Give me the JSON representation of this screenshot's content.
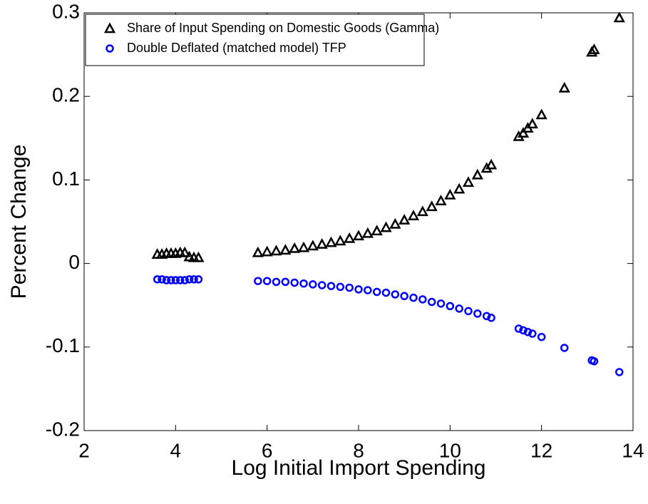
{
  "chart_data": {
    "type": "scatter",
    "xlabel": "Log Initial Import Spending",
    "ylabel": "Percent Change",
    "x": [
      3.6,
      3.7,
      3.8,
      3.9,
      4.0,
      4.1,
      4.2,
      4.3,
      4.4,
      4.5,
      5.8,
      6.0,
      6.2,
      6.4,
      6.6,
      6.8,
      7.0,
      7.2,
      7.4,
      7.6,
      7.8,
      8.0,
      8.2,
      8.4,
      8.6,
      8.8,
      9.0,
      9.2,
      9.4,
      9.6,
      9.8,
      10.0,
      10.2,
      10.4,
      10.6,
      10.8,
      10.9,
      11.5,
      11.6,
      11.7,
      11.8,
      12.0,
      12.5,
      13.1,
      13.15,
      13.7
    ],
    "series": [
      {
        "name": "Share of Input Spending on Domestic Goods (Gamma)",
        "color": "#000000",
        "marker": "triangle",
        "values": [
          0.011,
          0.011,
          0.012,
          0.012,
          0.012,
          0.013,
          0.013,
          0.008,
          0.007,
          0.007,
          0.013,
          0.014,
          0.015,
          0.016,
          0.018,
          0.019,
          0.021,
          0.023,
          0.025,
          0.027,
          0.03,
          0.033,
          0.036,
          0.039,
          0.043,
          0.047,
          0.052,
          0.057,
          0.062,
          0.068,
          0.075,
          0.082,
          0.089,
          0.097,
          0.106,
          0.114,
          0.118,
          0.152,
          0.156,
          0.162,
          0.167,
          0.178,
          0.21,
          0.253,
          0.256,
          0.294
        ]
      },
      {
        "name": "Double Deflated (matched model) TFP",
        "color": "#0000ff",
        "marker": "circle",
        "values": [
          -0.019,
          -0.019,
          -0.02,
          -0.02,
          -0.02,
          -0.02,
          -0.02,
          -0.019,
          -0.019,
          -0.019,
          -0.021,
          -0.021,
          -0.022,
          -0.022,
          -0.023,
          -0.024,
          -0.025,
          -0.026,
          -0.027,
          -0.028,
          -0.029,
          -0.031,
          -0.032,
          -0.034,
          -0.035,
          -0.037,
          -0.039,
          -0.041,
          -0.043,
          -0.046,
          -0.048,
          -0.051,
          -0.054,
          -0.057,
          -0.06,
          -0.063,
          -0.065,
          -0.078,
          -0.08,
          -0.082,
          -0.084,
          -0.088,
          -0.101,
          -0.116,
          -0.117,
          -0.13
        ]
      }
    ],
    "xlim": [
      2,
      14
    ],
    "xticks": [
      2,
      4,
      6,
      8,
      10,
      12,
      14
    ],
    "ylim": [
      -0.2,
      0.3
    ],
    "yticks": [
      -0.2,
      -0.1,
      0,
      0.1,
      0.2,
      0.3
    ],
    "grid": false,
    "legend_location": "northwest"
  }
}
